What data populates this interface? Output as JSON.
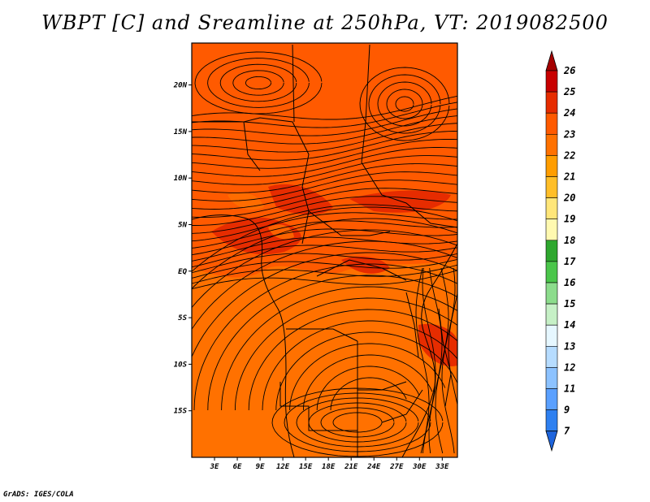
{
  "title": "WBPT [C] and Sreamline at 250hPa, VT: 2019082500",
  "credit": "GrADS: IGES/COLA",
  "map": {
    "lon_labels": [
      "3E",
      "6E",
      "9E",
      "12E",
      "15E",
      "18E",
      "21E",
      "24E",
      "27E",
      "30E",
      "33E"
    ],
    "lat_labels": [
      "20N",
      "15N",
      "10N",
      "5N",
      "EQ",
      "5S",
      "10S",
      "15S"
    ],
    "lon_range": [
      0,
      35
    ],
    "lat_range": [
      -20,
      24.5
    ],
    "field": "wet-bulb potential temperature",
    "units": "C",
    "dominant_colors": [
      "#ff5a00",
      "#ff7100",
      "#e62c00"
    ]
  },
  "colorbar": {
    "levels": [
      "26",
      "25",
      "24",
      "23",
      "22",
      "21",
      "20",
      "19",
      "18",
      "17",
      "16",
      "15",
      "14",
      "13",
      "12",
      "11",
      "9",
      "7"
    ],
    "colors": [
      "#a50000",
      "#c80000",
      "#e62c00",
      "#ff5a00",
      "#ff7100",
      "#ff9d00",
      "#ffbe28",
      "#ffe679",
      "#fff9b0",
      "#2ea72e",
      "#4bc64b",
      "#8cdc8c",
      "#c6f0c6",
      "#e6f7ff",
      "#b6dcff",
      "#8cc2ff",
      "#5aa0ff",
      "#2e80f0",
      "#1e64dc"
    ]
  }
}
